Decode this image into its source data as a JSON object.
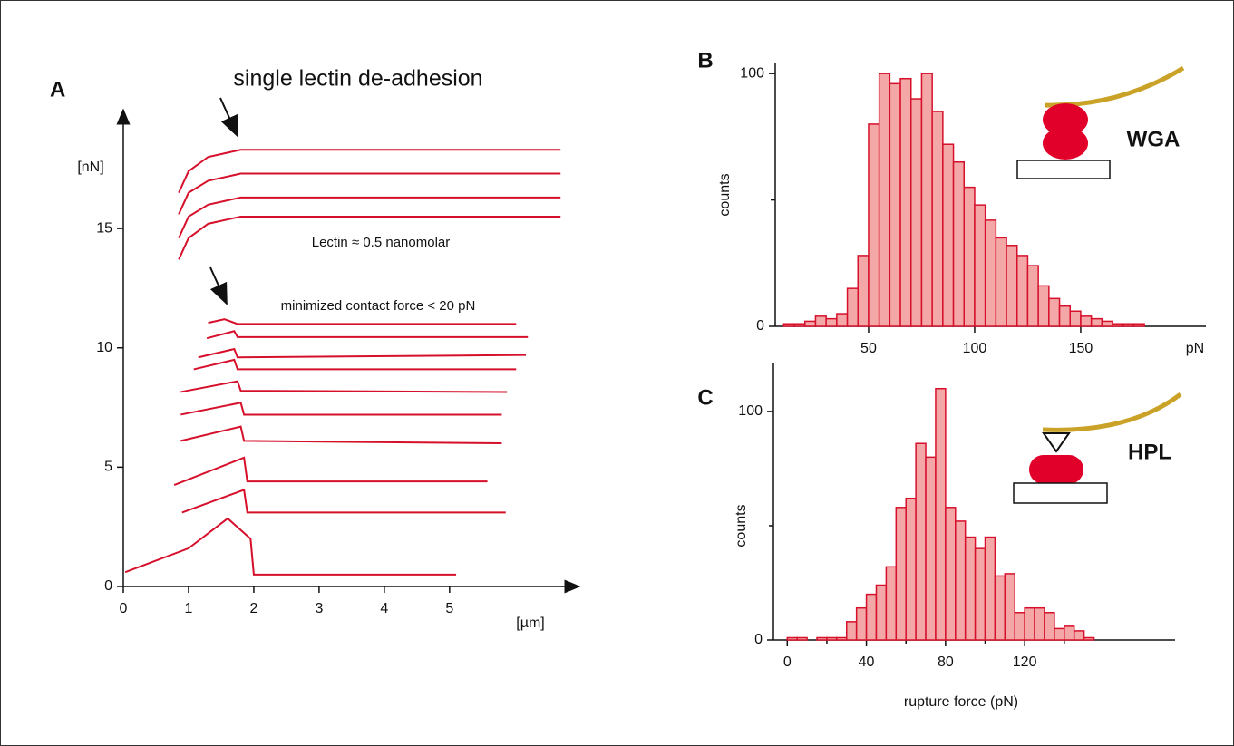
{
  "chart_data": [
    {
      "type": "line",
      "label": "A",
      "title": "single lectin de-adhesion",
      "annotations": [
        "Lectin ≈ 0.5 nanomolar",
        "minimized contact force < 20 pN"
      ],
      "xlabel": "[µm]",
      "ylabel": "[nN]",
      "color": "#d6102b",
      "xlim": [
        0,
        6.85
      ],
      "ylim": [
        0,
        19.6
      ],
      "xticks": [
        0,
        1,
        2,
        3,
        4,
        5
      ],
      "yticks": [
        0,
        5,
        10,
        15
      ],
      "series": [
        {
          "x": [
            0.03,
            1.0,
            1.6,
            1.95,
            2.0,
            5.1
          ],
          "values": [
            0.6,
            1.6,
            2.85,
            2.0,
            0.5,
            0.5
          ]
        },
        {
          "x": [
            0.9,
            1.85,
            1.9,
            5.86
          ],
          "values": [
            3.1,
            4.05,
            3.1,
            3.1
          ]
        },
        {
          "x": [
            0.78,
            1.85,
            1.9,
            5.58
          ],
          "values": [
            4.25,
            5.4,
            4.4,
            4.4
          ]
        },
        {
          "x": [
            0.88,
            1.8,
            1.85,
            5.8
          ],
          "values": [
            6.1,
            6.7,
            6.1,
            6.0
          ]
        },
        {
          "x": [
            0.88,
            1.8,
            1.85,
            5.8
          ],
          "values": [
            7.2,
            7.7,
            7.2,
            7.2
          ]
        },
        {
          "x": [
            0.88,
            1.75,
            1.8,
            5.88
          ],
          "values": [
            8.15,
            8.6,
            8.2,
            8.15
          ]
        },
        {
          "x": [
            1.08,
            1.7,
            1.75,
            6.02
          ],
          "values": [
            9.1,
            9.5,
            9.1,
            9.1
          ]
        },
        {
          "x": [
            1.15,
            1.7,
            1.75,
            6.17
          ],
          "values": [
            9.6,
            9.95,
            9.6,
            9.7
          ]
        },
        {
          "x": [
            1.28,
            1.7,
            1.75,
            6.2
          ],
          "values": [
            10.4,
            10.7,
            10.45,
            10.45
          ]
        },
        {
          "x": [
            1.3,
            1.55,
            1.75,
            6.02
          ],
          "values": [
            11.05,
            11.2,
            11.0,
            11.0
          ]
        },
        {
          "x": [
            0.85,
            1.0,
            1.3,
            1.8,
            6.7
          ],
          "values": [
            13.7,
            14.6,
            15.2,
            15.5,
            15.5
          ]
        },
        {
          "x": [
            0.85,
            1.0,
            1.3,
            1.8,
            6.7
          ],
          "values": [
            14.6,
            15.5,
            16.0,
            16.3,
            16.3
          ]
        },
        {
          "x": [
            0.85,
            1.0,
            1.3,
            1.8,
            6.7
          ],
          "values": [
            15.6,
            16.5,
            17.0,
            17.3,
            17.3
          ]
        },
        {
          "x": [
            0.85,
            1.0,
            1.3,
            1.8,
            6.7
          ],
          "values": [
            16.5,
            17.4,
            18.0,
            18.3,
            18.3
          ]
        }
      ]
    },
    {
      "type": "histogram",
      "label": "B",
      "ylabel": "counts",
      "xunit": "pN",
      "inset_label": "WGA",
      "color": "#f4a7a7",
      "edge_color": "#d6102b",
      "xlim": [
        6,
        209
      ],
      "ylim": [
        0,
        104
      ],
      "xticks": [
        50,
        100,
        150
      ],
      "yticks": [
        0,
        100
      ],
      "y_minor_ticks": [
        50
      ],
      "bins": [
        10,
        15,
        20,
        25,
        30,
        35,
        40,
        45,
        50,
        55,
        60,
        65,
        70,
        75,
        80,
        85,
        90,
        95,
        100,
        105,
        110,
        115,
        120,
        125,
        130,
        135,
        140,
        145,
        150,
        155,
        160,
        165,
        170,
        175,
        180
      ],
      "counts": [
        1,
        1,
        2,
        4,
        3,
        5,
        15,
        28,
        80,
        100,
        96,
        98,
        90,
        100,
        85,
        72,
        65,
        55,
        48,
        42,
        35,
        32,
        28,
        24,
        16,
        11,
        8,
        6,
        4,
        3,
        2,
        1,
        1,
        1
      ]
    },
    {
      "type": "histogram",
      "label": "C",
      "ylabel": "counts",
      "xlabel": "rupture force (pN)",
      "inset_label": "HPL",
      "color": "#f4a7a7",
      "edge_color": "#d6102b",
      "xlim": [
        -7,
        196
      ],
      "ylim": [
        0,
        121
      ],
      "xticks": [
        0,
        40,
        80,
        120
      ],
      "x_minor_ticks": [
        20,
        60,
        100,
        140
      ],
      "yticks": [
        0,
        100
      ],
      "y_minor_ticks": [
        50
      ],
      "bins": [
        0,
        5,
        10,
        15,
        20,
        25,
        30,
        35,
        40,
        45,
        50,
        55,
        60,
        65,
        70,
        75,
        80,
        85,
        90,
        95,
        100,
        105,
        110,
        115,
        120,
        125,
        130,
        135,
        140,
        145,
        150,
        155
      ],
      "counts": [
        1,
        1,
        0,
        1,
        1,
        1,
        8,
        14,
        20,
        24,
        32,
        58,
        62,
        86,
        80,
        110,
        58,
        52,
        45,
        40,
        45,
        28,
        29,
        12,
        14,
        14,
        12,
        5,
        6,
        4,
        1
      ]
    }
  ]
}
